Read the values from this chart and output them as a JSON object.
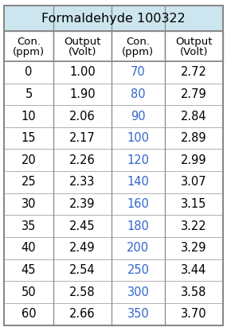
{
  "title": "Formaldehyde 100322",
  "col_headers_line1": [
    "Con.",
    "Output",
    "Con.",
    "Output"
  ],
  "col_headers_line2": [
    "(ppm)",
    "(Volt)",
    "(ppm)",
    "(Volt)"
  ],
  "left_con": [
    "0",
    "5",
    "10",
    "15",
    "20",
    "25",
    "30",
    "35",
    "40",
    "45",
    "50",
    "60"
  ],
  "left_out": [
    "1.00",
    "1.90",
    "2.06",
    "2.17",
    "2.26",
    "2.33",
    "2.39",
    "2.45",
    "2.49",
    "2.54",
    "2.58",
    "2.66"
  ],
  "right_con": [
    "70",
    "80",
    "90",
    "100",
    "120",
    "140",
    "160",
    "180",
    "200",
    "250",
    "300",
    "350"
  ],
  "right_out": [
    "2.72",
    "2.79",
    "2.84",
    "2.89",
    "2.99",
    "3.07",
    "3.15",
    "3.22",
    "3.29",
    "3.44",
    "3.58",
    "3.70"
  ],
  "title_bg": "#cce5ee",
  "header_bg": "#ffffff",
  "row_bg": "#ffffff",
  "outer_border_color": "#888888",
  "inner_line_color": "#aaaaaa",
  "title_fontsize": 11.5,
  "header_fontsize": 9.5,
  "data_fontsize": 10.5,
  "left_con_color": "#000000",
  "left_out_color": "#000000",
  "right_con_color": "#3366cc",
  "right_out_color": "#000000",
  "fig_width": 2.85,
  "fig_height": 4.16,
  "dpi": 100
}
